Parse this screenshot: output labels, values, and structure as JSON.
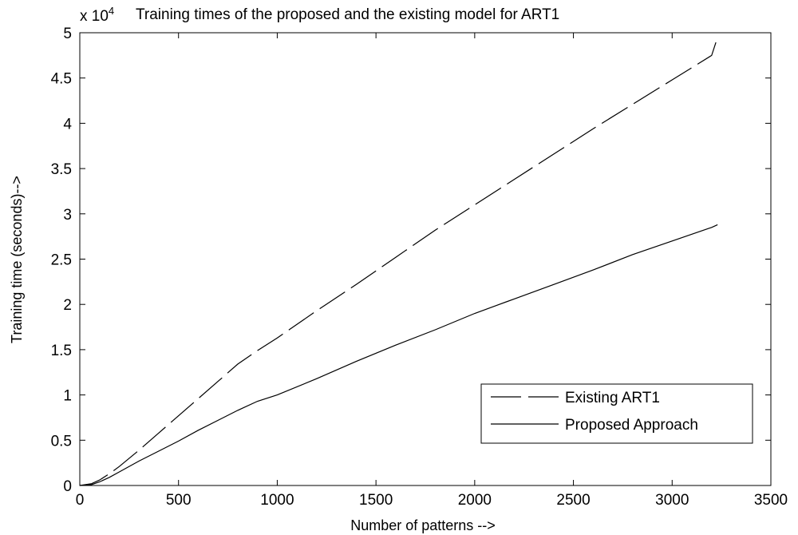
{
  "chart_data": {
    "type": "line",
    "title": "Training times of the proposed and the existing model for ART1",
    "xlabel": "Number of patterns -->",
    "ylabel": "Training time (seconds)-->",
    "y_multiplier_label": "x 10",
    "y_multiplier_exponent": "4",
    "xlim": [
      0,
      3500
    ],
    "ylim": [
      0,
      5
    ],
    "x_ticks": [
      "0",
      "500",
      "1000",
      "1500",
      "2000",
      "2500",
      "3000",
      "3500"
    ],
    "y_ticks": [
      "0",
      "0.5",
      "1",
      "1.5",
      "2",
      "2.5",
      "3",
      "3.5",
      "4",
      "4.5",
      "5"
    ],
    "grid": false,
    "legend_position": "lower-right",
    "series": [
      {
        "name": "Existing ART1",
        "line_style": "dashed",
        "color": "#000000",
        "x": [
          0,
          60,
          100,
          150,
          200,
          300,
          400,
          500,
          600,
          700,
          800,
          900,
          1000,
          1200,
          1400,
          1600,
          1800,
          2000,
          2200,
          2400,
          2600,
          2800,
          3000,
          3200,
          3230
        ],
        "y": [
          0.0,
          0.02,
          0.06,
          0.13,
          0.21,
          0.39,
          0.58,
          0.77,
          0.96,
          1.15,
          1.34,
          1.49,
          1.63,
          1.93,
          2.22,
          2.52,
          2.82,
          3.1,
          3.38,
          3.66,
          3.94,
          4.21,
          4.48,
          4.75,
          4.95
        ]
      },
      {
        "name": "Proposed Approach",
        "line_style": "solid",
        "color": "#000000",
        "x": [
          0,
          60,
          100,
          150,
          200,
          300,
          400,
          500,
          600,
          700,
          800,
          900,
          1000,
          1200,
          1400,
          1600,
          1800,
          2000,
          2200,
          2400,
          2600,
          2800,
          3000,
          3200,
          3230
        ],
        "y": [
          0.0,
          0.01,
          0.04,
          0.09,
          0.15,
          0.27,
          0.38,
          0.49,
          0.61,
          0.72,
          0.83,
          0.93,
          1.0,
          1.18,
          1.37,
          1.55,
          1.72,
          1.9,
          2.06,
          2.22,
          2.38,
          2.55,
          2.7,
          2.85,
          2.88
        ]
      }
    ]
  }
}
